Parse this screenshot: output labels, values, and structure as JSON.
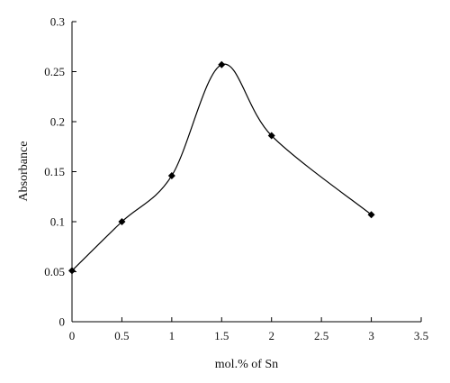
{
  "chart_data": {
    "type": "scatter",
    "title": "",
    "xlabel": "mol.% of Sn",
    "ylabel": "Absorbance",
    "xlim": [
      0,
      3.5
    ],
    "ylim": [
      0,
      0.3
    ],
    "x_ticks": [
      "0",
      "0.5",
      "1",
      "1.5",
      "2",
      "2.5",
      "3",
      "3.5"
    ],
    "y_ticks": [
      "0",
      "0.05",
      "0.1",
      "0.15",
      "0.2",
      "0.25",
      "0.3"
    ],
    "grid": false,
    "legend": "none",
    "series": [
      {
        "x": [
          0,
          0.5,
          1,
          1.5,
          2,
          3
        ],
        "y": [
          0.051,
          0.1,
          0.146,
          0.257,
          0.186,
          0.107
        ],
        "line": "smoothed",
        "marker": "diamond",
        "color": "#000000"
      }
    ]
  }
}
